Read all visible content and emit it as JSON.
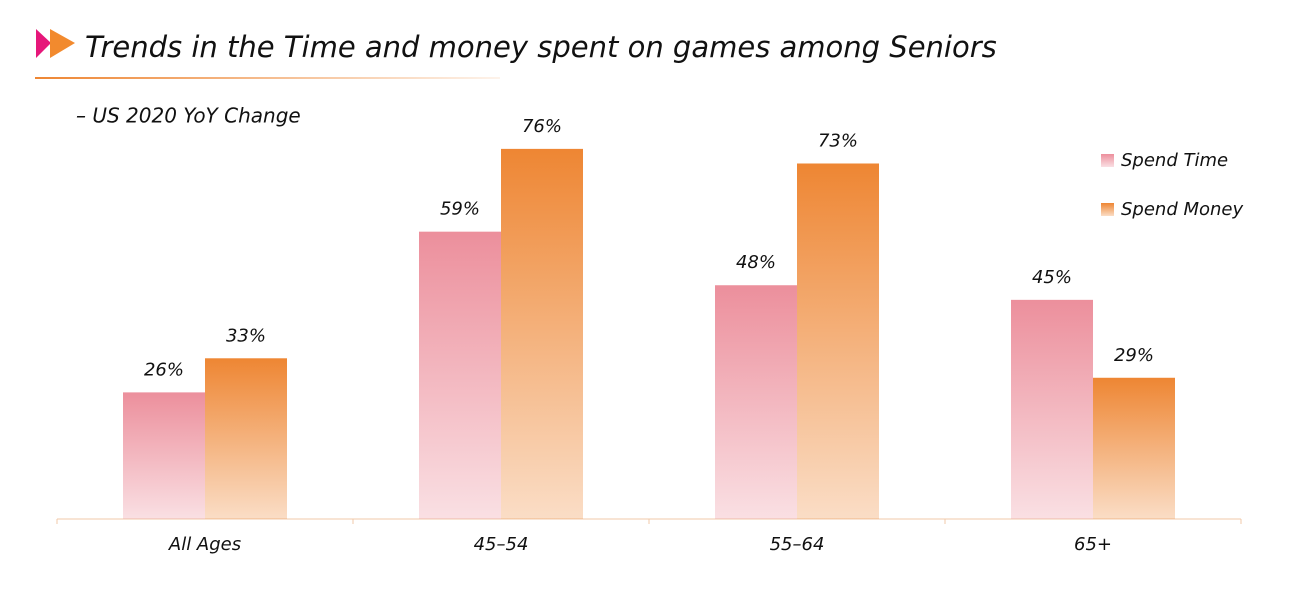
{
  "chart_data": {
    "type": "bar",
    "title": "Trends in the Time and money spent on games among Seniors",
    "subtitle": "– US 2020 YoY Change",
    "categories": [
      "All Ages",
      "45–54",
      "55–64",
      "65+"
    ],
    "series": [
      {
        "name": "Spend Time",
        "color": "#ec8f9c",
        "values": [
          26,
          59,
          48,
          45
        ],
        "value_labels": [
          "26%",
          "59%",
          "48%",
          "45%"
        ]
      },
      {
        "name": "Spend Money",
        "color": "#ee8633",
        "values": [
          33,
          76,
          73,
          29
        ],
        "value_labels": [
          "33%",
          "76%",
          "73%",
          "29%"
        ]
      }
    ],
    "legend": "top-right"
  }
}
